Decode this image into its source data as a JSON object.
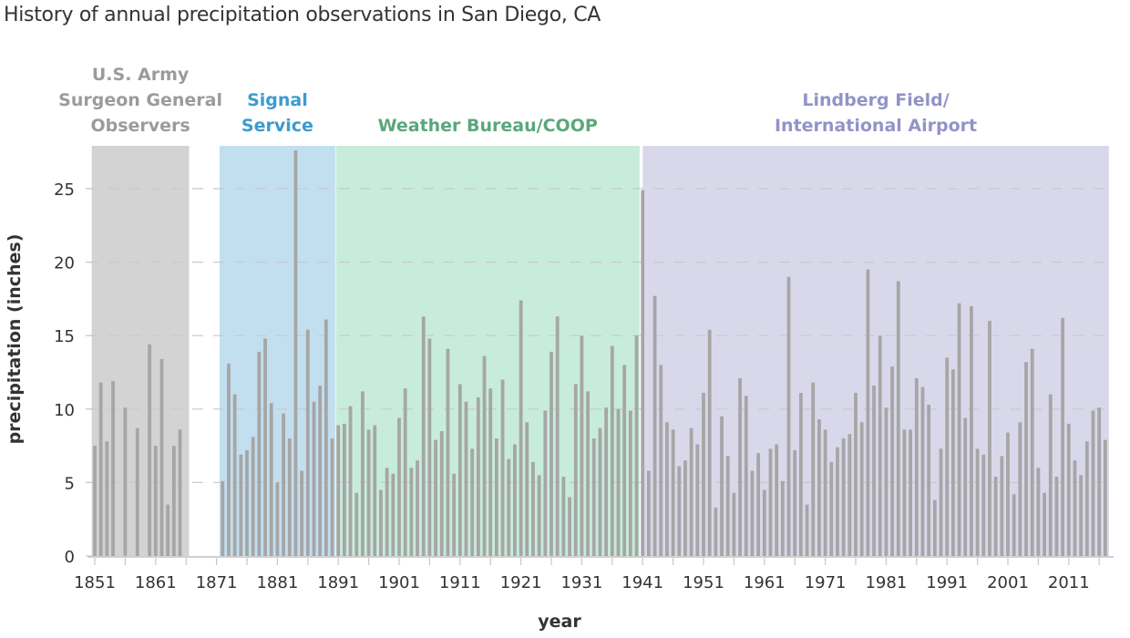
{
  "chart_data": {
    "type": "bar",
    "title": "History of annual precipitation observations in San Diego, CA",
    "xlabel": "year",
    "ylabel": "precipitation (inches)",
    "ylim": [
      0,
      28
    ],
    "xlim": [
      1850,
      2018
    ],
    "yticks": [
      0,
      5,
      10,
      15,
      20,
      25
    ],
    "xtick_labels": [
      "1851",
      "1861",
      "1871",
      "1881",
      "1891",
      "1901",
      "1911",
      "1921",
      "1931",
      "1941",
      "1951",
      "1961",
      "1971",
      "1981",
      "1991",
      "2001",
      "2011"
    ],
    "grid": "horizontal dashed",
    "bar_color": "#a6a6a6",
    "eras": [
      {
        "label_lines": [
          "U.S. Army",
          "Surgeon General",
          "Observers"
        ],
        "start": 1850.5,
        "end": 1866.5,
        "fill": "#d3d3d3",
        "text_color": "#9b9b9b"
      },
      {
        "label_lines": [
          "Signal",
          "Service"
        ],
        "start": 1871.5,
        "end": 1890.5,
        "fill": "#c2dff0",
        "text_color": "#3b9bd0"
      },
      {
        "label_lines": [
          "Weather Bureau/COOP"
        ],
        "start": 1890.6,
        "end": 1940.5,
        "fill": "#c7ecdb",
        "text_color": "#5aa77b"
      },
      {
        "label_lines": [
          "Lindberg Field/",
          "International Airport"
        ],
        "start": 1941.0,
        "end": 2017.6,
        "fill": "#d9d8eb",
        "text_color": "#9393c9"
      }
    ],
    "series": [
      {
        "name": "annual precipitation",
        "x": [
          1851,
          1852,
          1853,
          1854,
          1856,
          1858,
          1860,
          1861,
          1862,
          1863,
          1864,
          1865,
          1872,
          1873,
          1874,
          1875,
          1876,
          1877,
          1878,
          1879,
          1880,
          1881,
          1882,
          1883,
          1884,
          1885,
          1886,
          1887,
          1888,
          1889,
          1890,
          1891,
          1892,
          1893,
          1894,
          1895,
          1896,
          1897,
          1898,
          1899,
          1900,
          1901,
          1902,
          1903,
          1904,
          1905,
          1906,
          1907,
          1908,
          1909,
          1910,
          1911,
          1912,
          1913,
          1914,
          1915,
          1916,
          1917,
          1918,
          1919,
          1920,
          1921,
          1922,
          1923,
          1924,
          1925,
          1926,
          1927,
          1928,
          1929,
          1930,
          1931,
          1932,
          1933,
          1934,
          1935,
          1936,
          1937,
          1938,
          1939,
          1940,
          1941,
          1942,
          1943,
          1944,
          1945,
          1946,
          1947,
          1948,
          1949,
          1950,
          1951,
          1952,
          1953,
          1954,
          1955,
          1956,
          1957,
          1958,
          1959,
          1960,
          1961,
          1962,
          1963,
          1964,
          1965,
          1966,
          1967,
          1968,
          1969,
          1970,
          1971,
          1972,
          1973,
          1974,
          1975,
          1976,
          1977,
          1978,
          1979,
          1980,
          1981,
          1982,
          1983,
          1984,
          1985,
          1986,
          1987,
          1988,
          1989,
          1990,
          1991,
          1992,
          1993,
          1994,
          1995,
          1996,
          1997,
          1998,
          1999,
          2000,
          2001,
          2002,
          2003,
          2004,
          2005,
          2006,
          2007,
          2008,
          2009,
          2010,
          2011,
          2012,
          2013,
          2014,
          2015,
          2016,
          2017
        ],
        "values": [
          7.5,
          11.8,
          7.8,
          11.9,
          10.1,
          8.7,
          14.4,
          7.5,
          13.4,
          3.5,
          7.5,
          8.6,
          5.1,
          13.1,
          11.0,
          6.9,
          7.2,
          8.1,
          13.9,
          14.8,
          10.4,
          5.0,
          9.7,
          8.0,
          27.6,
          5.8,
          15.4,
          10.5,
          11.6,
          16.1,
          8.0,
          8.9,
          9.0,
          10.2,
          4.3,
          11.2,
          8.6,
          8.9,
          4.5,
          6.0,
          5.6,
          9.4,
          11.4,
          6.0,
          6.5,
          16.3,
          14.8,
          7.9,
          8.5,
          14.1,
          5.6,
          11.7,
          10.5,
          7.3,
          10.8,
          13.6,
          11.4,
          8.0,
          12.0,
          6.6,
          7.6,
          17.4,
          9.1,
          6.4,
          5.5,
          9.9,
          13.9,
          16.3,
          5.4,
          4.0,
          11.7,
          15.0,
          11.2,
          8.0,
          8.7,
          10.1,
          14.3,
          10.0,
          13.0,
          9.9,
          15.0,
          24.9,
          5.8,
          17.7,
          13.0,
          9.1,
          8.6,
          6.1,
          6.5,
          8.7,
          7.6,
          11.1,
          15.4,
          3.3,
          9.5,
          6.8,
          4.3,
          12.1,
          10.9,
          5.8,
          7.0,
          4.5,
          7.3,
          7.6,
          5.1,
          19.0,
          7.2,
          11.1,
          3.5,
          11.8,
          9.3,
          8.6,
          6.4,
          7.4,
          8.0,
          8.3,
          11.1,
          9.1,
          19.5,
          11.6,
          15.0,
          10.1,
          12.9,
          18.7,
          8.6,
          8.6,
          12.1,
          11.5,
          10.3,
          3.8,
          7.3,
          13.5,
          12.7,
          17.2,
          9.4,
          17.0,
          7.3,
          6.9,
          16.0,
          5.4,
          6.8,
          8.4,
          4.2,
          9.1,
          13.2,
          14.1,
          6.0,
          4.3,
          11.0,
          5.4,
          16.2,
          9.0,
          6.5,
          5.5,
          7.8,
          9.9,
          10.1,
          7.9
        ]
      }
    ]
  }
}
